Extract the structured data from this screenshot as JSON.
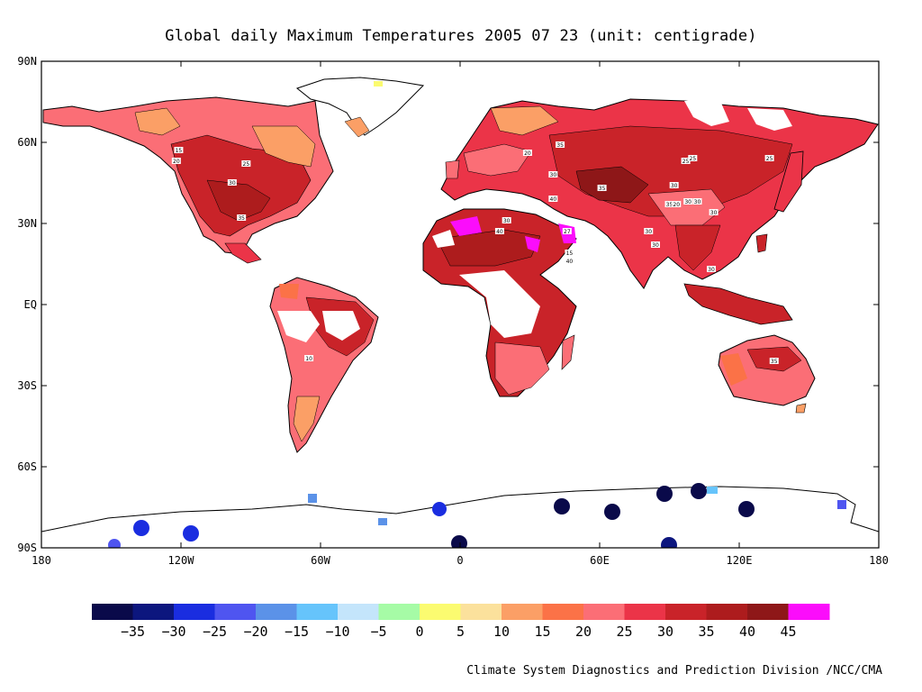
{
  "title": "Global daily Maximum Temperatures  2005 07 23   (unit: centigrade)",
  "credit": "Climate System Diagnostics and Prediction Division /NCC/CMA",
  "map": {
    "lon_range": [
      -180,
      180
    ],
    "lat_range": [
      -90,
      90
    ],
    "lat_ticks": [
      {
        "value": 90,
        "label": "90N"
      },
      {
        "value": 60,
        "label": "60N"
      },
      {
        "value": 30,
        "label": "30N"
      },
      {
        "value": 0,
        "label": "EQ"
      },
      {
        "value": -30,
        "label": "30S"
      },
      {
        "value": -60,
        "label": "60S"
      },
      {
        "value": -90,
        "label": "90S"
      }
    ],
    "lon_ticks": [
      {
        "value": -180,
        "label": "180"
      },
      {
        "value": -120,
        "label": "120W"
      },
      {
        "value": -60,
        "label": "60W"
      },
      {
        "value": 0,
        "label": "0"
      },
      {
        "value": 60,
        "label": "60E"
      },
      {
        "value": 120,
        "label": "120E"
      },
      {
        "value": 180,
        "label": "180"
      }
    ],
    "contour_labels": [
      {
        "lon": -121,
        "lat": 57,
        "text": "15"
      },
      {
        "lon": -122,
        "lat": 53,
        "text": "20"
      },
      {
        "lon": -92,
        "lat": 52,
        "text": "25"
      },
      {
        "lon": -98,
        "lat": 45,
        "text": "30"
      },
      {
        "lon": -94,
        "lat": 32,
        "text": "35"
      },
      {
        "lon": -65,
        "lat": -20,
        "text": "10"
      },
      {
        "lon": 29,
        "lat": 56,
        "text": "20"
      },
      {
        "lon": 43,
        "lat": 59,
        "text": "35"
      },
      {
        "lon": 40,
        "lat": 48,
        "text": "30"
      },
      {
        "lon": 40,
        "lat": 39,
        "text": "40"
      },
      {
        "lon": 20,
        "lat": 31,
        "text": "30"
      },
      {
        "lon": 17,
        "lat": 27,
        "text": "40"
      },
      {
        "lon": 46,
        "lat": 27,
        "text": "27"
      },
      {
        "lon": 47,
        "lat": 19,
        "text": "15"
      },
      {
        "lon": 47,
        "lat": 16,
        "text": "40"
      },
      {
        "lon": 61,
        "lat": 43,
        "text": "35"
      },
      {
        "lon": 97,
        "lat": 53,
        "text": "25"
      },
      {
        "lon": 100,
        "lat": 54,
        "text": "25"
      },
      {
        "lon": 133,
        "lat": 54,
        "text": "25"
      },
      {
        "lon": 92,
        "lat": 44,
        "text": "30"
      },
      {
        "lon": 90,
        "lat": 37,
        "text": "35"
      },
      {
        "lon": 93,
        "lat": 37,
        "text": "20"
      },
      {
        "lon": 98,
        "lat": 38,
        "text": "30"
      },
      {
        "lon": 102,
        "lat": 38,
        "text": "30"
      },
      {
        "lon": 109,
        "lat": 34,
        "text": "30"
      },
      {
        "lon": 81,
        "lat": 27,
        "text": "30"
      },
      {
        "lon": 84,
        "lat": 22,
        "text": "30"
      },
      {
        "lon": 108,
        "lat": 13,
        "text": "30"
      },
      {
        "lon": 135,
        "lat": -21,
        "text": "35"
      }
    ]
  },
  "colorbar": {
    "colors": [
      "#0a0a4a",
      "#0c167e",
      "#1a2de0",
      "#4f55f0",
      "#5b92e8",
      "#66c4fb",
      "#c4e5fb",
      "#a6fba6",
      "#fbfb70",
      "#fbe19c",
      "#fb9f66",
      "#fb7247",
      "#fb6e76",
      "#eb3448",
      "#c92329",
      "#ad1c1d",
      "#8e1718",
      "#fb0dfb"
    ],
    "tick_labels": [
      "-35",
      "-30",
      "-25",
      "-20",
      "-15",
      "-10",
      "-5",
      "0",
      "5",
      "10",
      "15",
      "20",
      "25",
      "30",
      "35",
      "40",
      "45"
    ]
  }
}
